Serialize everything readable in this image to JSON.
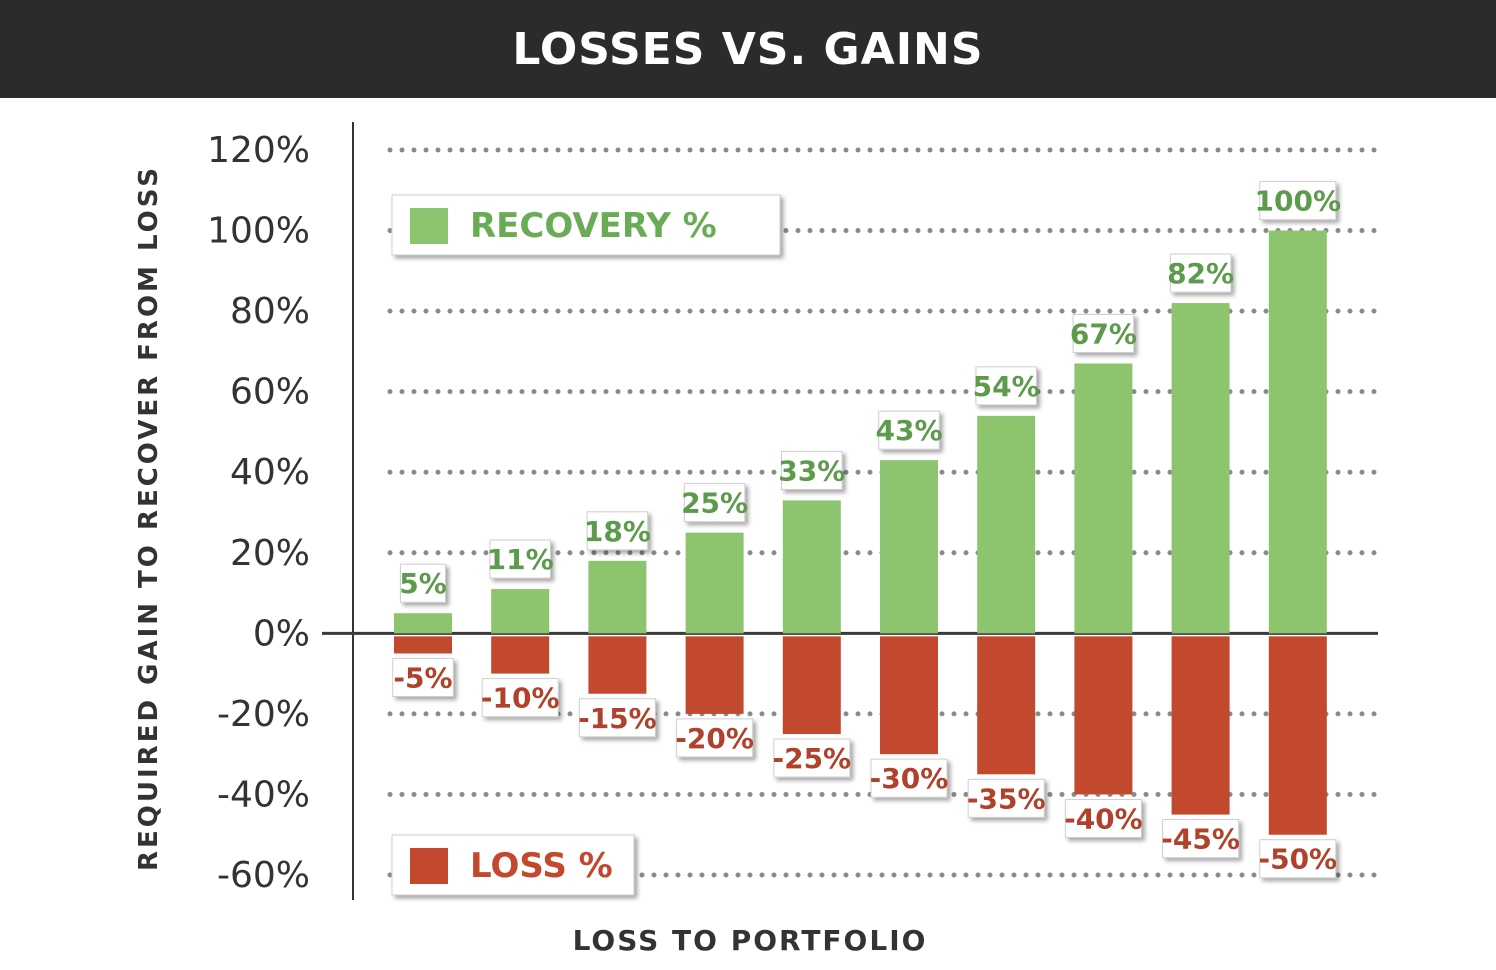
{
  "title": "LOSSES VS. GAINS",
  "chart_data": {
    "type": "bar",
    "title": "LOSSES VS. GAINS",
    "xlabel": "LOSS TO PORTFOLIO",
    "ylabel": "REQUIRED GAIN TO RECOVER FROM LOSS",
    "ylim": [
      -60,
      120
    ],
    "yticks": [
      120,
      100,
      80,
      60,
      40,
      20,
      0,
      -20,
      -40,
      -60
    ],
    "ytick_labels": [
      "120%",
      "100%",
      "80%",
      "60%",
      "40%",
      "20%",
      "0%",
      "-20%",
      "-40%",
      "-60%"
    ],
    "grid": "dotted horizontal",
    "series": [
      {
        "name": "RECOVERY %",
        "color": "#8cc56e",
        "label_color": "#5c9a4c",
        "values": [
          5,
          11,
          18,
          25,
          33,
          43,
          54,
          67,
          82,
          100
        ],
        "labels": [
          "5%",
          "11%",
          "18%",
          "25%",
          "33%",
          "43%",
          "54%",
          "67%",
          "82%",
          "100%"
        ]
      },
      {
        "name": "LOSS %",
        "color": "#c2492e",
        "label_color": "#b0412a",
        "values": [
          -5,
          -10,
          -15,
          -20,
          -25,
          -30,
          -35,
          -40,
          -45,
          -50
        ],
        "labels": [
          "-5%",
          "-10%",
          "-15%",
          "-20%",
          "-25%",
          "-30%",
          "-35%",
          "-40%",
          "-45%",
          "-50%"
        ]
      }
    ],
    "legend": [
      {
        "label": "RECOVERY %",
        "color": "#8cc56e",
        "text_color": "#6aac55",
        "placement": "top-left"
      },
      {
        "label": "LOSS %",
        "color": "#c2492e",
        "text_color": "#c2492e",
        "placement": "bottom-left"
      }
    ]
  }
}
